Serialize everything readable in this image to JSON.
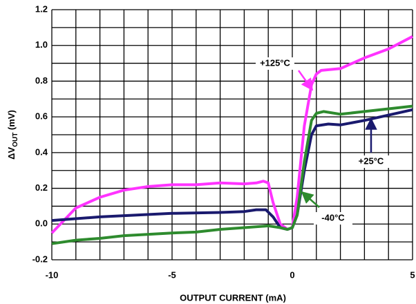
{
  "chart_data": {
    "type": "line",
    "xlabel": "OUTPUT CURRENT (mA)",
    "ylabel": {
      "main": "ΔV",
      "sub": "OUT",
      "unit": " (mV)"
    },
    "xlim": [
      -10,
      5
    ],
    "ylim": [
      -0.2,
      1.2
    ],
    "xticks": [
      -10,
      -5,
      0,
      5
    ],
    "yticks": [
      -0.2,
      {
        "value": 0,
        "label": "0.0"
      },
      0.2,
      0.4,
      0.6,
      0.8,
      {
        "value": 1,
        "label": "1.0"
      },
      1.2
    ],
    "grid": true,
    "xgrid": [
      -10,
      -9,
      -8,
      -7,
      -6,
      -5,
      -4,
      -3,
      -2,
      -1,
      0,
      1,
      2,
      3,
      4,
      5
    ],
    "ygrid": [
      -0.2,
      -0.1,
      0,
      0.1,
      0.2,
      0.3,
      0.4,
      0.5,
      0.6,
      0.7,
      0.8,
      0.9,
      1,
      1.1,
      1.2
    ],
    "series": [
      {
        "name": "+125°C",
        "color": "#ff33ff",
        "x": [
          -10,
          -9,
          -8,
          -7,
          -6,
          -5,
          -4,
          -3,
          -2,
          -1.5,
          -1.2,
          -1,
          -0.8,
          -0.5,
          -0.2,
          0,
          0.2,
          0.5,
          0.8,
          1,
          1.2,
          2,
          3,
          4,
          5
        ],
        "values": [
          -0.05,
          0.09,
          0.15,
          0.19,
          0.21,
          0.22,
          0.22,
          0.23,
          0.225,
          0.23,
          0.24,
          0.23,
          0.12,
          0,
          -0.03,
          -0.02,
          0.15,
          0.55,
          0.78,
          0.84,
          0.86,
          0.87,
          0.93,
          0.98,
          1.05
        ]
      },
      {
        "name": "+25°C",
        "color": "#1a1a6e",
        "x": [
          -10,
          -9,
          -8,
          -5,
          -3,
          -2,
          -1.5,
          -1.1,
          -0.8,
          -0.5,
          -0.2,
          0,
          0.2,
          0.5,
          0.8,
          1,
          1.5,
          2,
          3,
          4,
          5
        ],
        "values": [
          0.02,
          0.03,
          0.04,
          0.06,
          0.065,
          0.07,
          0.08,
          0.08,
          0.04,
          -0.02,
          -0.03,
          -0.02,
          0.05,
          0.3,
          0.5,
          0.55,
          0.56,
          0.555,
          0.58,
          0.61,
          0.64
        ]
      },
      {
        "name": "-40°C",
        "color": "#2e8b2e",
        "x": [
          -10,
          -9,
          -8,
          -7,
          -5,
          -4,
          -3,
          -2,
          -1,
          -0.5,
          -0.2,
          0,
          0.2,
          0.5,
          0.8,
          1,
          1.3,
          2,
          3,
          4,
          5
        ],
        "values": [
          -0.11,
          -0.09,
          -0.08,
          -0.065,
          -0.05,
          -0.045,
          -0.03,
          -0.02,
          -0.01,
          -0.02,
          -0.03,
          -0.02,
          0.05,
          0.35,
          0.58,
          0.62,
          0.63,
          0.615,
          0.63,
          0.645,
          0.66
        ]
      }
    ]
  }
}
